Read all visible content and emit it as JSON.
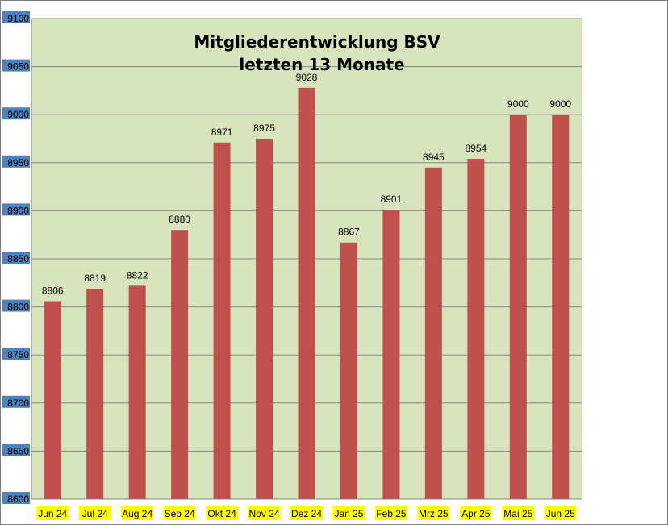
{
  "chart_data": {
    "type": "bar",
    "title": "Mitgliederentwicklung BSV",
    "subtitle": "letzten 13 Monate",
    "categories": [
      "Jun 24",
      "Jul 24",
      "Aug 24",
      "Sep 24",
      "Okt 24",
      "Nov 24",
      "Dez 24",
      "Jan 25",
      "Feb 25",
      "Mrz 25",
      "Apr 25",
      "Mai 25",
      "Jun 25"
    ],
    "values": [
      8806,
      8819,
      8822,
      8880,
      8971,
      8975,
      9028,
      8867,
      8901,
      8945,
      8954,
      9000,
      9000
    ],
    "ylim": [
      8600,
      9100
    ],
    "yticks": [
      8600,
      8650,
      8700,
      8750,
      8800,
      8850,
      8900,
      8950,
      9000,
      9050,
      9100
    ],
    "grid": true,
    "legend": "none",
    "colors": {
      "bar": "#c0504d",
      "plot_background": "#d7e4bd",
      "gridline": "#868686",
      "axis_label_highlight_x": "#ffff00",
      "axis_label_highlight_y": "#4f81bd"
    }
  }
}
